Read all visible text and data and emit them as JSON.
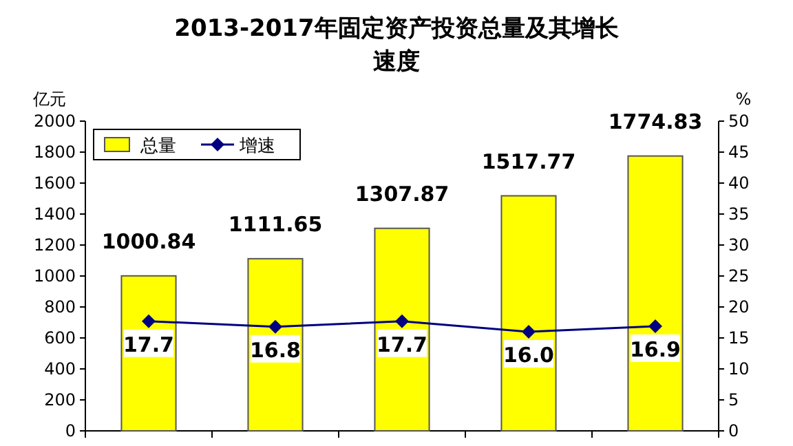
{
  "chart_data": {
    "type": "bar",
    "title": "2013-2017年固定资产投资总量及其增长速度",
    "ylabel": "亿元",
    "y2label": "%",
    "categories": [
      null,
      null,
      null,
      null,
      null
    ],
    "series": [
      {
        "name": "总量",
        "color": "#ffff00",
        "values": [
          1000.84,
          1111.65,
          1307.87,
          1517.77,
          1774.83
        ]
      },
      {
        "name": "增速",
        "type": "line",
        "axis": "y2",
        "color": "#000080",
        "marker": "diamond",
        "values": [
          17.7,
          16.8,
          17.7,
          16.0,
          16.9
        ],
        "value_labels": [
          "17.7",
          "16.8",
          "17.7",
          "16.0",
          "16.9"
        ]
      }
    ],
    "ylim": [
      0,
      2000
    ],
    "yticks": [
      0,
      200,
      400,
      600,
      800,
      1000,
      1200,
      1400,
      1600,
      1800,
      2000
    ],
    "y2lim": [
      0,
      50
    ],
    "y2ticks": [
      0,
      5,
      10,
      15,
      20,
      25,
      30,
      35,
      40,
      45,
      50
    ],
    "data_labels": true,
    "legend": "top left",
    "grid": false
  }
}
